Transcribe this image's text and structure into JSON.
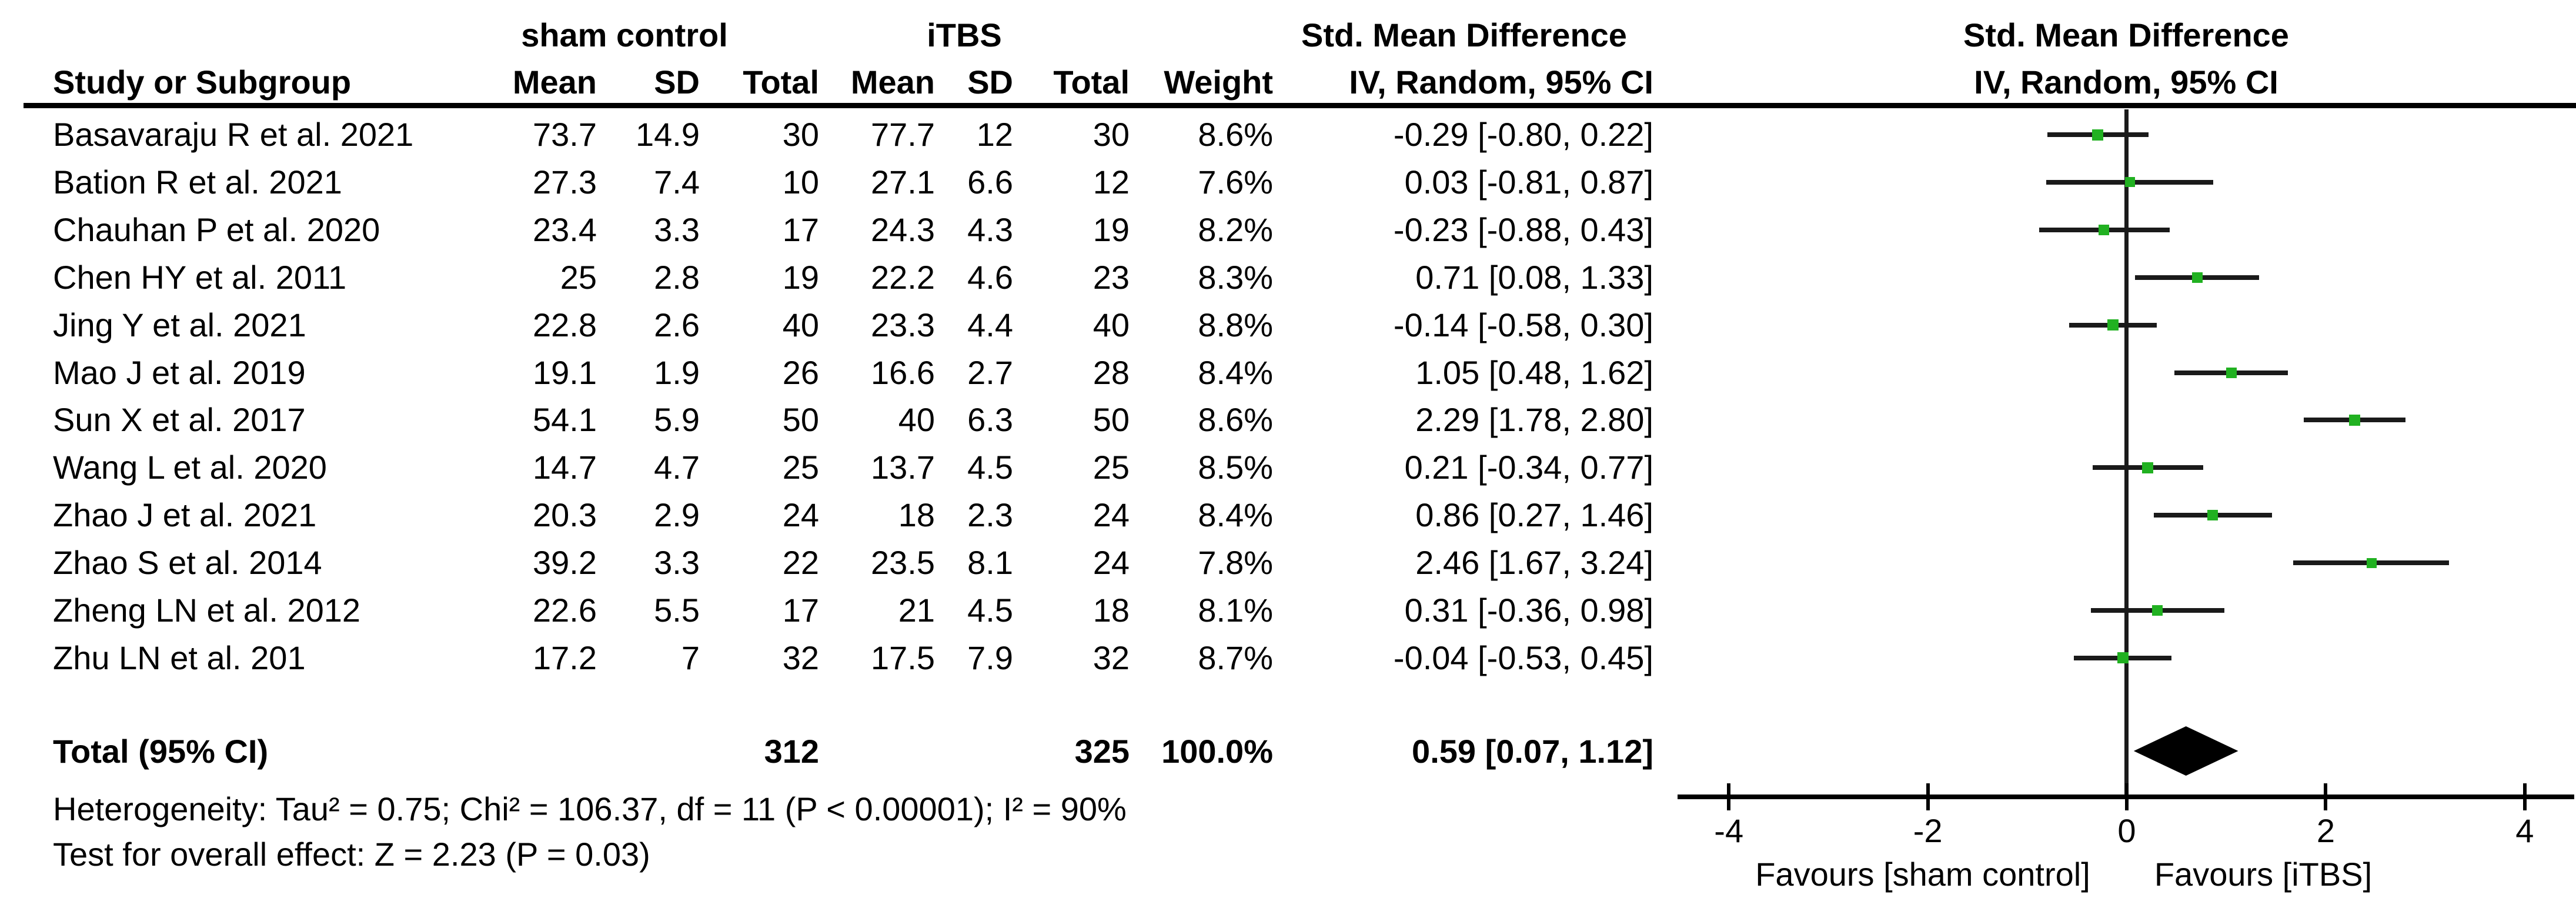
{
  "table": {
    "group_headers": {
      "sham": "sham control",
      "itbs": "iTBS",
      "smd_table": "Std. Mean Difference",
      "smd_plot": "Std. Mean Difference"
    },
    "col_headers": {
      "study": "Study or Subgroup",
      "mean1": "Mean",
      "sd1": "SD",
      "total1": "Total",
      "mean2": "Mean",
      "sd2": "SD",
      "total2": "Total",
      "weight": "Weight",
      "ci_table": "IV, Random, 95% CI",
      "ci_plot": "IV, Random, 95% CI"
    },
    "rows": [
      {
        "study": "Basavaraju R et al. 2021",
        "mean1": "73.7",
        "sd1": "14.9",
        "total1": "30",
        "mean2": "77.7",
        "sd2": "12",
        "total2": "30",
        "weight": "8.6%",
        "ci": "-0.29 [-0.80, 0.22]"
      },
      {
        "study": "Bation R et al. 2021",
        "mean1": "27.3",
        "sd1": "7.4",
        "total1": "10",
        "mean2": "27.1",
        "sd2": "6.6",
        "total2": "12",
        "weight": "7.6%",
        "ci": "0.03 [-0.81, 0.87]"
      },
      {
        "study": "Chauhan P et al. 2020",
        "mean1": "23.4",
        "sd1": "3.3",
        "total1": "17",
        "mean2": "24.3",
        "sd2": "4.3",
        "total2": "19",
        "weight": "8.2%",
        "ci": "-0.23 [-0.88, 0.43]"
      },
      {
        "study": "Chen HY et al. 2011",
        "mean1": "25",
        "sd1": "2.8",
        "total1": "19",
        "mean2": "22.2",
        "sd2": "4.6",
        "total2": "23",
        "weight": "8.3%",
        "ci": "0.71 [0.08, 1.33]"
      },
      {
        "study": "Jing Y et al. 2021",
        "mean1": "22.8",
        "sd1": "2.6",
        "total1": "40",
        "mean2": "23.3",
        "sd2": "4.4",
        "total2": "40",
        "weight": "8.8%",
        "ci": "-0.14 [-0.58, 0.30]"
      },
      {
        "study": "Mao J et al. 2019",
        "mean1": "19.1",
        "sd1": "1.9",
        "total1": "26",
        "mean2": "16.6",
        "sd2": "2.7",
        "total2": "28",
        "weight": "8.4%",
        "ci": "1.05 [0.48, 1.62]"
      },
      {
        "study": "Sun X et al. 2017",
        "mean1": "54.1",
        "sd1": "5.9",
        "total1": "50",
        "mean2": "40",
        "sd2": "6.3",
        "total2": "50",
        "weight": "8.6%",
        "ci": "2.29 [1.78, 2.80]"
      },
      {
        "study": "Wang L et al. 2020",
        "mean1": "14.7",
        "sd1": "4.7",
        "total1": "25",
        "mean2": "13.7",
        "sd2": "4.5",
        "total2": "25",
        "weight": "8.5%",
        "ci": "0.21 [-0.34, 0.77]"
      },
      {
        "study": "Zhao J et al. 2021",
        "mean1": "20.3",
        "sd1": "2.9",
        "total1": "24",
        "mean2": "18",
        "sd2": "2.3",
        "total2": "24",
        "weight": "8.4%",
        "ci": "0.86 [0.27, 1.46]"
      },
      {
        "study": "Zhao S et al. 2014",
        "mean1": "39.2",
        "sd1": "3.3",
        "total1": "22",
        "mean2": "23.5",
        "sd2": "8.1",
        "total2": "24",
        "weight": "7.8%",
        "ci": "2.46 [1.67, 3.24]"
      },
      {
        "study": "Zheng LN et al. 2012",
        "mean1": "22.6",
        "sd1": "5.5",
        "total1": "17",
        "mean2": "21",
        "sd2": "4.5",
        "total2": "18",
        "weight": "8.1%",
        "ci": "0.31 [-0.36, 0.98]"
      },
      {
        "study": "Zhu LN et al. 201",
        "mean1": "17.2",
        "sd1": "7",
        "total1": "32",
        "mean2": "17.5",
        "sd2": "7.9",
        "total2": "32",
        "weight": "8.7%",
        "ci": "-0.04 [-0.53, 0.45]"
      }
    ],
    "total": {
      "label": "Total (95% CI)",
      "total1": "312",
      "total2": "325",
      "weight": "100.0%",
      "ci": "0.59 [0.07, 1.12]"
    },
    "footnotes": {
      "heterogeneity": "Heterogeneity: Tau² = 0.75; Chi² = 106.37, df = 11 (P < 0.00001); I² = 90%",
      "overall_effect": "Test for overall effect: Z = 2.23 (P = 0.03)"
    }
  },
  "plot": {
    "favours_left": "Favours [sham control]",
    "favours_right": "Favours [iTBS]",
    "marker_color": "#21B121",
    "diamond_color": "#000000",
    "line_color": "#1a1a1a"
  },
  "chart_data": {
    "type": "scatter",
    "subtype": "forest-plot",
    "title": "Std. Mean Difference — IV, Random, 95% CI",
    "xlim": [
      -4,
      4
    ],
    "x_ticks": [
      -4,
      -2,
      0,
      2,
      4
    ],
    "grid": false,
    "favours_left": "Favours [sham control]",
    "favours_right": "Favours [iTBS]",
    "studies": [
      "Basavaraju R et al. 2021",
      "Bation R et al. 2021",
      "Chauhan P et al. 2020",
      "Chen HY et al. 2011",
      "Jing Y et al. 2021",
      "Mao J et al. 2019",
      "Sun X et al. 2017",
      "Wang L et al. 2020",
      "Zhao J et al. 2021",
      "Zhao S et al. 2014",
      "Zheng LN et al. 2012",
      "Zhu LN et al. 201"
    ],
    "estimates": [
      -0.29,
      0.03,
      -0.23,
      0.71,
      -0.14,
      1.05,
      2.29,
      0.21,
      0.86,
      2.46,
      0.31,
      -0.04
    ],
    "ci_low": [
      -0.8,
      -0.81,
      -0.88,
      0.08,
      -0.58,
      0.48,
      1.78,
      -0.34,
      0.27,
      1.67,
      -0.36,
      -0.53
    ],
    "ci_high": [
      0.22,
      0.87,
      0.43,
      1.33,
      0.3,
      1.62,
      2.8,
      0.77,
      1.46,
      3.24,
      0.98,
      0.45
    ],
    "weights_pct": [
      8.6,
      7.6,
      8.2,
      8.3,
      8.8,
      8.4,
      8.6,
      8.5,
      8.4,
      7.8,
      8.1,
      8.7
    ],
    "overall": {
      "estimate": 0.59,
      "ci_low": 0.07,
      "ci_high": 1.12,
      "weight_pct": 100.0
    }
  }
}
